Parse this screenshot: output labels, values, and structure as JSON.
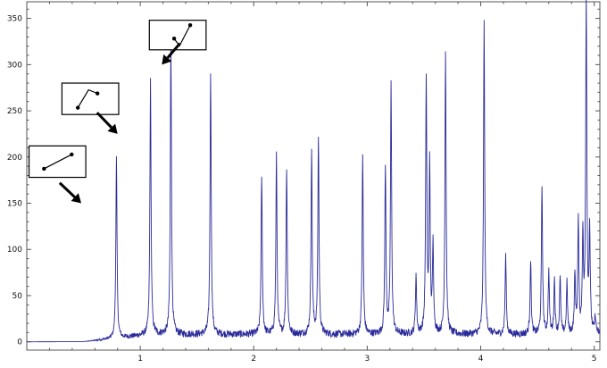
{
  "chart_data": {
    "type": "line",
    "title": "",
    "xlabel": "",
    "ylabel": "",
    "xlim": [
      0.0,
      5.05
    ],
    "ylim": [
      -9,
      368
    ],
    "x_ticks": [
      1,
      2,
      3,
      4,
      5
    ],
    "y_ticks": [
      0,
      50,
      100,
      150,
      200,
      250,
      300,
      350
    ],
    "grid": false,
    "line_color": "#2b2b9a",
    "series": [
      {
        "peaks": [
          {
            "x": 0.79,
            "y": 196
          },
          {
            "x": 1.09,
            "y": 274
          },
          {
            "x": 1.27,
            "y": 318
          },
          {
            "x": 1.62,
            "y": 284
          },
          {
            "x": 2.07,
            "y": 172
          },
          {
            "x": 2.2,
            "y": 193
          },
          {
            "x": 2.29,
            "y": 181
          },
          {
            "x": 2.51,
            "y": 200
          },
          {
            "x": 2.57,
            "y": 214
          },
          {
            "x": 2.96,
            "y": 193
          },
          {
            "x": 3.16,
            "y": 181
          },
          {
            "x": 3.21,
            "y": 269
          },
          {
            "x": 3.43,
            "y": 64
          },
          {
            "x": 3.52,
            "y": 276
          },
          {
            "x": 3.55,
            "y": 180
          },
          {
            "x": 3.58,
            "y": 95
          },
          {
            "x": 3.69,
            "y": 306
          },
          {
            "x": 4.03,
            "y": 338
          },
          {
            "x": 4.22,
            "y": 85
          },
          {
            "x": 4.44,
            "y": 80
          },
          {
            "x": 4.54,
            "y": 160
          },
          {
            "x": 4.6,
            "y": 68
          },
          {
            "x": 4.65,
            "y": 58
          },
          {
            "x": 4.7,
            "y": 60
          },
          {
            "x": 4.76,
            "y": 55
          },
          {
            "x": 4.83,
            "y": 62
          },
          {
            "x": 4.86,
            "y": 120
          },
          {
            "x": 4.9,
            "y": 104
          },
          {
            "x": 4.93,
            "y": 365
          },
          {
            "x": 4.96,
            "y": 110
          },
          {
            "x": 5.01,
            "y": 18
          }
        ]
      }
    ],
    "annotations": [
      {
        "icon": "line-segment-icon",
        "box": {
          "x": 0.02,
          "y": 212,
          "w": 0.5,
          "h": 34
        },
        "arrow_from": {
          "x": 0.29,
          "y": 172
        },
        "arrow_to": {
          "x": 0.48,
          "y": 150
        }
      },
      {
        "icon": "angle-segment-icon",
        "box": {
          "x": 0.31,
          "y": 280,
          "w": 0.5,
          "h": 34
        },
        "arrow_from": {
          "x": 0.62,
          "y": 248
        },
        "arrow_to": {
          "x": 0.8,
          "y": 225
        }
      },
      {
        "icon": "v-shape-icon",
        "box": {
          "x": 1.08,
          "y": 348,
          "w": 0.5,
          "h": 32
        },
        "arrow_from": {
          "x": 1.35,
          "y": 323
        },
        "arrow_to": {
          "x": 1.19,
          "y": 300
        }
      }
    ]
  }
}
